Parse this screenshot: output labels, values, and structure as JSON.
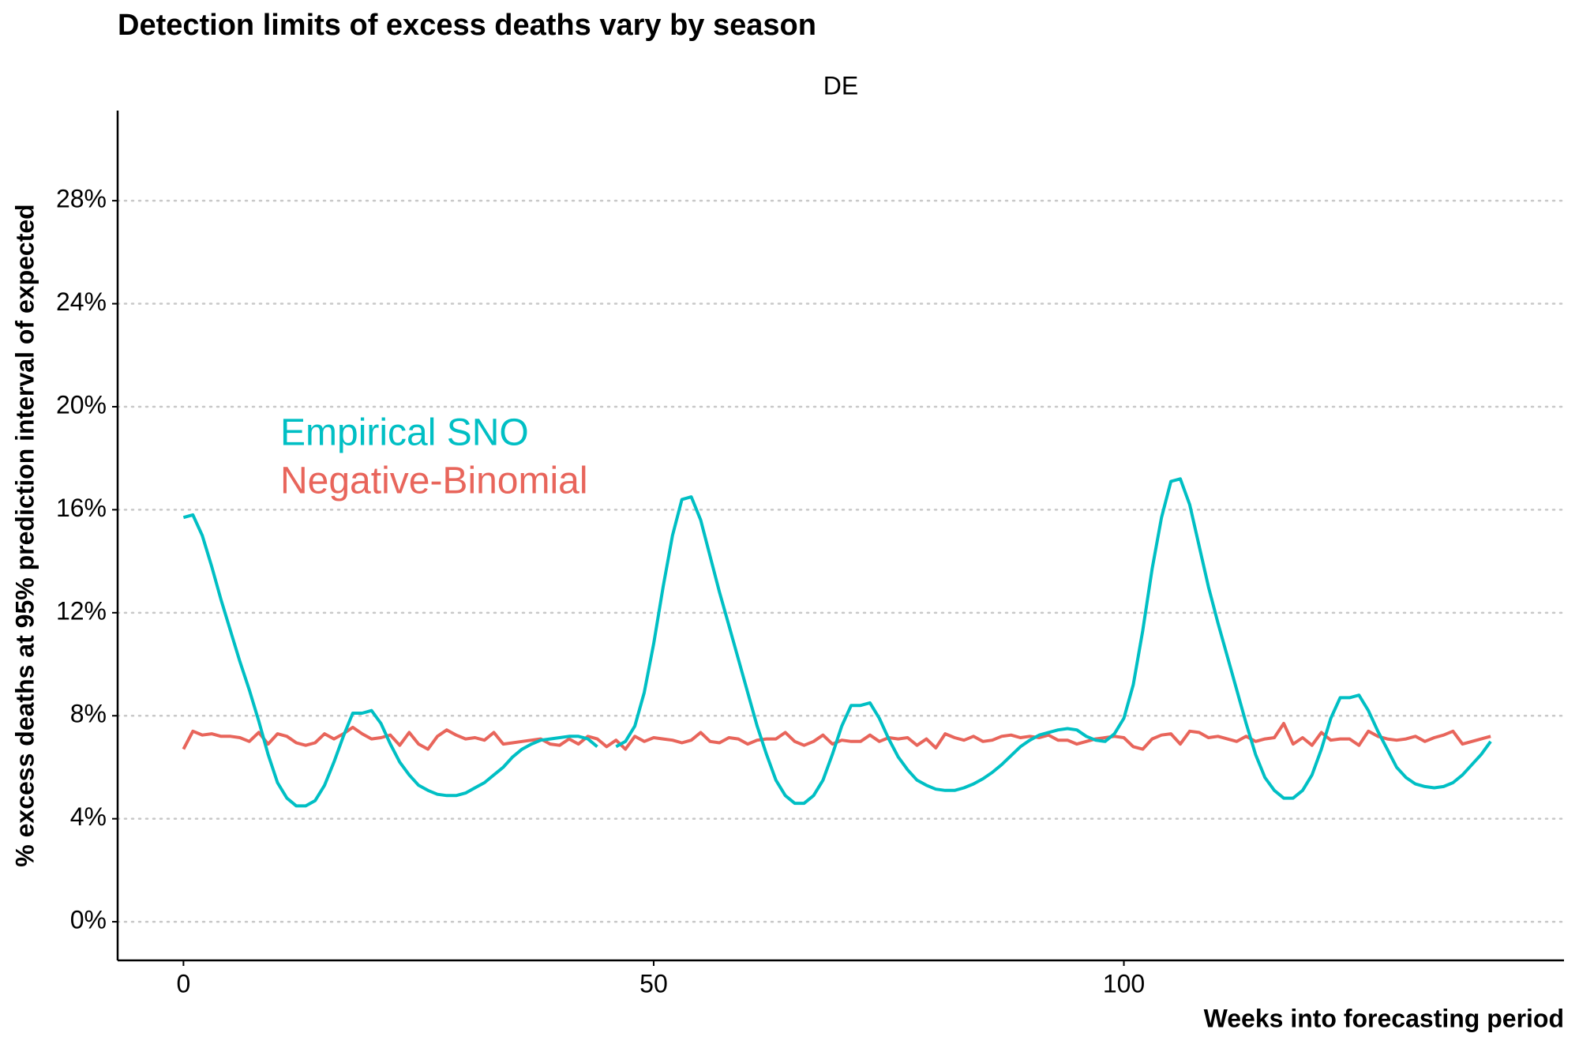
{
  "chart_data": {
    "type": "line",
    "title": "Detection limits of excess deaths vary by season",
    "facet": "DE",
    "x_label": "Weeks into forecasting period",
    "y_label": "% excess deaths at 95% prediction interval of expected",
    "x": [
      0,
      1,
      2,
      3,
      4,
      5,
      6,
      7,
      8,
      9,
      10,
      11,
      12,
      13,
      14,
      15,
      16,
      17,
      18,
      19,
      20,
      21,
      22,
      23,
      24,
      25,
      26,
      27,
      28,
      29,
      30,
      31,
      32,
      33,
      34,
      35,
      36,
      37,
      38,
      39,
      40,
      41,
      42,
      43,
      44,
      45,
      46,
      47,
      48,
      49,
      50,
      51,
      52,
      53,
      54,
      55,
      56,
      57,
      58,
      59,
      60,
      61,
      62,
      63,
      64,
      65,
      66,
      67,
      68,
      69,
      70,
      71,
      72,
      73,
      74,
      75,
      76,
      77,
      78,
      79,
      80,
      81,
      82,
      83,
      84,
      85,
      86,
      87,
      88,
      89,
      90,
      91,
      92,
      93,
      94,
      95,
      96,
      97,
      98,
      99,
      100,
      101,
      102,
      103,
      104,
      105,
      106,
      107,
      108,
      109,
      110,
      111,
      112,
      113,
      114,
      115,
      116,
      117,
      118,
      119,
      120,
      121,
      122,
      123,
      124,
      125,
      126,
      127,
      128,
      129,
      130,
      131,
      132,
      133,
      134,
      135,
      136,
      137,
      138,
      139
    ],
    "series": [
      {
        "name": "Empirical SNO",
        "color": "#00BFC4",
        "values": [
          15.7,
          15.8,
          15.0,
          13.8,
          12.5,
          11.3,
          10.1,
          9.0,
          7.8,
          6.5,
          5.4,
          4.8,
          4.5,
          4.5,
          4.7,
          5.3,
          6.2,
          7.2,
          8.1,
          8.1,
          8.2,
          7.7,
          6.9,
          6.2,
          5.7,
          5.3,
          5.1,
          4.95,
          4.9,
          4.9,
          5.0,
          5.2,
          5.4,
          5.7,
          6.0,
          6.4,
          6.7,
          6.9,
          7.05,
          7.1,
          7.15,
          7.2,
          7.2,
          7.1,
          6.8,
          null,
          6.8,
          7.0,
          7.6,
          8.9,
          10.8,
          13.0,
          15.0,
          16.4,
          16.5,
          15.6,
          14.2,
          12.8,
          11.5,
          10.2,
          8.9,
          7.6,
          6.5,
          5.5,
          4.9,
          4.6,
          4.6,
          4.9,
          5.5,
          6.5,
          7.6,
          8.4,
          8.4,
          8.5,
          7.9,
          7.1,
          6.4,
          5.9,
          5.5,
          5.3,
          5.15,
          5.1,
          5.1,
          5.2,
          5.35,
          5.55,
          5.8,
          6.1,
          6.45,
          6.8,
          7.05,
          7.25,
          7.35,
          7.45,
          7.5,
          7.45,
          7.2,
          7.05,
          7.0,
          7.3,
          7.9,
          9.2,
          11.3,
          13.7,
          15.7,
          17.1,
          17.2,
          16.2,
          14.6,
          13.0,
          11.6,
          10.3,
          9.0,
          7.7,
          6.5,
          5.6,
          5.1,
          4.8,
          4.8,
          5.1,
          5.7,
          6.7,
          7.9,
          8.7,
          8.7,
          8.8,
          8.2,
          7.4,
          6.7,
          6.0,
          5.6,
          5.35,
          5.25,
          5.2,
          5.25,
          5.4,
          5.7,
          6.1,
          6.5,
          7.0
        ]
      },
      {
        "name": "Negative-Binomial",
        "color": "#E8655B",
        "values": [
          6.7,
          7.4,
          7.25,
          7.3,
          7.2,
          7.2,
          7.15,
          7.0,
          7.35,
          6.9,
          7.3,
          7.2,
          6.95,
          6.85,
          6.95,
          7.3,
          7.1,
          7.3,
          7.55,
          7.3,
          7.1,
          7.15,
          7.25,
          6.85,
          7.35,
          6.9,
          6.7,
          7.2,
          7.45,
          7.25,
          7.1,
          7.15,
          7.05,
          7.35,
          6.9,
          6.95,
          7.0,
          7.05,
          7.1,
          6.9,
          6.85,
          7.1,
          6.9,
          7.2,
          7.1,
          6.8,
          7.05,
          6.7,
          7.2,
          7.0,
          7.15,
          7.1,
          7.05,
          6.95,
          7.05,
          7.35,
          7.0,
          6.95,
          7.15,
          7.1,
          6.9,
          7.05,
          7.1,
          7.1,
          7.35,
          7.0,
          6.85,
          7.0,
          7.25,
          6.9,
          7.05,
          7.0,
          7.0,
          7.25,
          7.0,
          7.15,
          7.1,
          7.15,
          6.85,
          7.1,
          6.75,
          7.3,
          7.15,
          7.05,
          7.2,
          7.0,
          7.05,
          7.2,
          7.25,
          7.15,
          7.2,
          7.15,
          7.25,
          7.05,
          7.05,
          6.9,
          7.0,
          7.1,
          7.15,
          7.2,
          7.15,
          6.8,
          6.7,
          7.1,
          7.25,
          7.3,
          6.9,
          7.4,
          7.35,
          7.15,
          7.2,
          7.1,
          7.0,
          7.2,
          7.0,
          7.1,
          7.15,
          7.7,
          6.9,
          7.15,
          6.85,
          7.35,
          7.05,
          7.1,
          7.1,
          6.85,
          7.4,
          7.2,
          7.1,
          7.05,
          7.1,
          7.2,
          7.0,
          7.15,
          7.25,
          7.4,
          6.9,
          7.0,
          7.1,
          7.2
        ]
      }
    ],
    "xlim": [
      -7,
      146.8
    ],
    "ylim": [
      -1.5,
      31.5
    ],
    "xticks": [
      0,
      50,
      100
    ],
    "yticks": [
      {
        "value": 0,
        "label": "0%"
      },
      {
        "value": 4,
        "label": "4%"
      },
      {
        "value": 8,
        "label": "8%"
      },
      {
        "value": 12,
        "label": "12%"
      },
      {
        "value": 16,
        "label": "16%"
      },
      {
        "value": 20,
        "label": "20%"
      },
      {
        "value": 24,
        "label": "24%"
      },
      {
        "value": 28,
        "label": "28%"
      }
    ],
    "grid": true
  }
}
